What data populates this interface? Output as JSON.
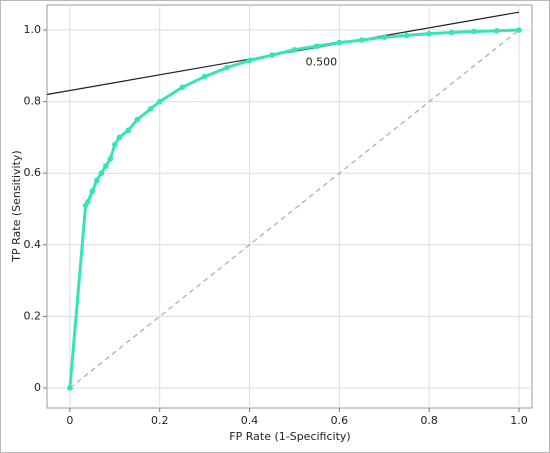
{
  "chart_data": {
    "type": "line",
    "xlabel": "FP Rate (1-Specificity)",
    "ylabel": "TP Rate (Sensitivity)",
    "xlim": [
      -0.051,
      1.029
    ],
    "ylim": [
      -0.056,
      1.07
    ],
    "xticks": [
      0,
      0.2,
      0.4,
      0.6,
      0.8,
      {
        "value": 1,
        "label": "1.0"
      }
    ],
    "yticks": [
      0,
      0.2,
      0.4,
      0.6,
      0.8,
      {
        "value": 1,
        "label": "1.0"
      }
    ],
    "grid": true,
    "series": [
      {
        "color": "#aaaaaa",
        "line_style": "dashed",
        "markers": false,
        "x": [
          0,
          1
        ],
        "values": [
          0,
          1
        ]
      },
      {
        "color": "#222222",
        "line_style": "solid",
        "markers": false,
        "x": [
          -0.051,
          1.0
        ],
        "values": [
          0.82,
          1.05
        ]
      },
      {
        "color": "#33e6b6",
        "line_style": "solid",
        "markers": true,
        "x": [
          0,
          0.035,
          0.04,
          0.05,
          0.06,
          0.07,
          0.08,
          0.09,
          0.1,
          0.11,
          0.13,
          0.15,
          0.18,
          0.2,
          0.25,
          0.3,
          0.35,
          0.4,
          0.45,
          0.5,
          0.55,
          0.6,
          0.65,
          0.7,
          0.75,
          0.8,
          0.85,
          0.9,
          0.95,
          1.0
        ],
        "values": [
          0,
          0.51,
          0.52,
          0.55,
          0.58,
          0.6,
          0.62,
          0.64,
          0.68,
          0.7,
          0.72,
          0.75,
          0.78,
          0.8,
          0.84,
          0.87,
          0.895,
          0.915,
          0.93,
          0.945,
          0.955,
          0.965,
          0.972,
          0.98,
          0.985,
          0.99,
          0.993,
          0.996,
          0.998,
          1.0
        ]
      }
    ],
    "annotations": [
      {
        "text": "0.500",
        "x": 0.56,
        "y": 0.91
      }
    ]
  }
}
